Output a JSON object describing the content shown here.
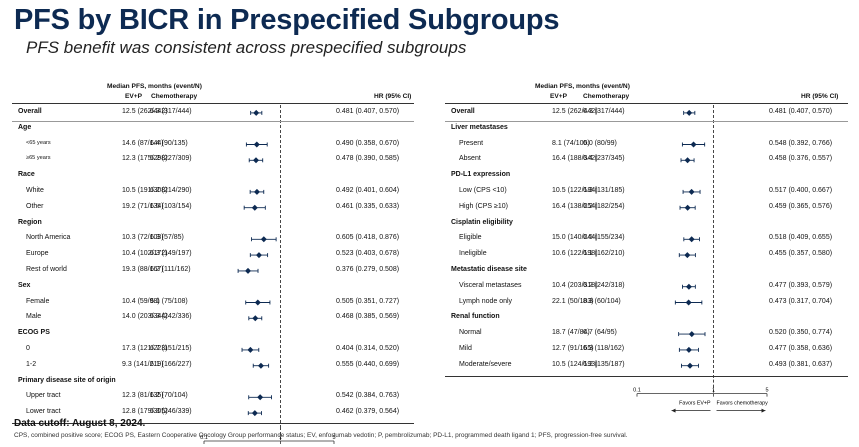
{
  "title": "PFS by BICR in Prespecified Subgroups",
  "subtitle": "PFS benefit was consistent across prespecified subgroups",
  "headers": {
    "median": "Median PFS, months (event/N)",
    "evp": "EV+P",
    "chemo": "Chemotherapy",
    "hr": "HR (95% CI)"
  },
  "axis": {
    "ticks": [
      "0.1",
      "1",
      "5"
    ],
    "favors_left": "Favors EV+P",
    "favors_right": "Favors chemotherapy"
  },
  "footer": {
    "cutoff": "Data cutoff: August 8, 2024.",
    "abbrev": "CPS, combined positive score; ECOG PS, Eastern Cooperative Oncology Group performance status; EV, enfortumab vedotin; P, pembrolizumab; PD-L1, programmed death ligand 1; PFS, progression-free survival."
  },
  "chart_data": [
    {
      "type": "forest",
      "x_scale": "log",
      "xlim": [
        0.1,
        5
      ],
      "reference_line": 1,
      "rows": [
        {
          "kind": "row",
          "label": "Overall",
          "bold": true,
          "evp": "12.5 (262/442)",
          "chemo": "6.3 (317/444)",
          "hr_text": "0.481 (0.407, 0.570)",
          "hr": 0.481,
          "lo": 0.407,
          "hi": 0.57
        },
        {
          "kind": "group",
          "label": "Age"
        },
        {
          "kind": "row",
          "label": "<65 years",
          "small": true,
          "evp": "14.6 (87/144)",
          "chemo": "6.4 (90/135)",
          "hr_text": "0.490 (0.358, 0.670)",
          "hr": 0.49,
          "lo": 0.358,
          "hi": 0.67
        },
        {
          "kind": "row",
          "label": "≥65 years",
          "small": true,
          "evp": "12.3 (175/298)",
          "chemo": "6.2 (227/309)",
          "hr_text": "0.478 (0.390, 0.585)",
          "hr": 0.478,
          "lo": 0.39,
          "hi": 0.585
        },
        {
          "kind": "group",
          "label": "Race"
        },
        {
          "kind": "row",
          "label": "White",
          "evp": "10.5 (191/308)",
          "chemo": "6.2 (214/290)",
          "hr_text": "0.492 (0.401, 0.604)",
          "hr": 0.492,
          "lo": 0.401,
          "hi": 0.604
        },
        {
          "kind": "row",
          "label": "Other",
          "evp": "19.2 (71/134)",
          "chemo": "6.5 (103/154)",
          "hr_text": "0.461 (0.335, 0.633)",
          "hr": 0.461,
          "lo": 0.335,
          "hi": 0.633
        },
        {
          "kind": "group",
          "label": "Region"
        },
        {
          "kind": "row",
          "label": "North America",
          "evp": "10.3 (72/103)",
          "chemo": "6.3 (57/85)",
          "hr_text": "0.605 (0.418, 0.876)",
          "hr": 0.605,
          "lo": 0.418,
          "hi": 0.876
        },
        {
          "kind": "row",
          "label": "Europe",
          "evp": "10.4 (102/172)",
          "chemo": "6.3 (149/197)",
          "hr_text": "0.523 (0.403, 0.678)",
          "hr": 0.523,
          "lo": 0.403,
          "hi": 0.678
        },
        {
          "kind": "row",
          "label": "Rest of world",
          "evp": "19.3 (88/167)",
          "chemo": "6.2 (111/162)",
          "hr_text": "0.376 (0.279, 0.508)",
          "hr": 0.376,
          "lo": 0.279,
          "hi": 0.508
        },
        {
          "kind": "group",
          "label": "Sex"
        },
        {
          "kind": "row",
          "label": "Female",
          "evp": "10.4 (59/98)",
          "chemo": "6.1 (75/108)",
          "hr_text": "0.505 (0.351, 0.727)",
          "hr": 0.505,
          "lo": 0.351,
          "hi": 0.727
        },
        {
          "kind": "row",
          "label": "Male",
          "evp": "14.0 (203/344)",
          "chemo": "6.3 (242/336)",
          "hr_text": "0.468 (0.385, 0.569)",
          "hr": 0.468,
          "lo": 0.385,
          "hi": 0.569
        },
        {
          "kind": "group",
          "label": "ECOG PS"
        },
        {
          "kind": "row",
          "label": "0",
          "evp": "17.3 (121/223)",
          "chemo": "6.7 (151/215)",
          "hr_text": "0.404 (0.314, 0.520)",
          "hr": 0.404,
          "lo": 0.314,
          "hi": 0.52
        },
        {
          "kind": "row",
          "label": "1-2",
          "evp": "9.3 (141/219)",
          "chemo": "6.1 (166/227)",
          "hr_text": "0.555 (0.440, 0.699)",
          "hr": 0.555,
          "lo": 0.44,
          "hi": 0.699
        },
        {
          "kind": "group",
          "label": "Primary disease site of origin"
        },
        {
          "kind": "row",
          "label": "Upper tract",
          "evp": "12.3 (81/135)",
          "chemo": "6.2 (70/104)",
          "hr_text": "0.542 (0.384, 0.763)",
          "hr": 0.542,
          "lo": 0.384,
          "hi": 0.763
        },
        {
          "kind": "row",
          "label": "Lower tract",
          "evp": "12.8 (179/305)",
          "chemo": "6.3 (246/339)",
          "hr_text": "0.462 (0.379, 0.564)",
          "hr": 0.462,
          "lo": 0.379,
          "hi": 0.564
        }
      ]
    },
    {
      "type": "forest",
      "x_scale": "log",
      "xlim": [
        0.1,
        5
      ],
      "reference_line": 1,
      "rows": [
        {
          "kind": "row",
          "label": "Overall",
          "bold": true,
          "evp": "12.5 (262/442)",
          "chemo": "6.3 (317/444)",
          "hr_text": "0.481 (0.407, 0.570)",
          "hr": 0.481,
          "lo": 0.407,
          "hi": 0.57
        },
        {
          "kind": "group",
          "label": "Liver metastases"
        },
        {
          "kind": "row",
          "label": "Present",
          "evp": "8.1 (74/100)",
          "chemo": "6.0 (80/99)",
          "hr_text": "0.548 (0.392, 0.766)",
          "hr": 0.548,
          "lo": 0.392,
          "hi": 0.766
        },
        {
          "kind": "row",
          "label": "Absent",
          "evp": "16.4 (188/342)",
          "chemo": "6.4 (237/345)",
          "hr_text": "0.458 (0.376, 0.557)",
          "hr": 0.458,
          "lo": 0.376,
          "hi": 0.557
        },
        {
          "kind": "group",
          "label": "PD-L1 expression"
        },
        {
          "kind": "row",
          "label": "Low (CPS <10)",
          "evp": "10.5 (122/184)",
          "chemo": "6.3 (131/185)",
          "hr_text": "0.517 (0.400, 0.667)",
          "hr": 0.517,
          "lo": 0.4,
          "hi": 0.667
        },
        {
          "kind": "row",
          "label": "High (CPS ≥10)",
          "evp": "16.4 (138/254)",
          "chemo": "6.2 (182/254)",
          "hr_text": "0.459 (0.365, 0.576)",
          "hr": 0.459,
          "lo": 0.365,
          "hi": 0.576
        },
        {
          "kind": "group",
          "label": "Cisplatin eligibility"
        },
        {
          "kind": "row",
          "label": "Eligible",
          "evp": "15.0 (140/244)",
          "chemo": "6.5 (155/234)",
          "hr_text": "0.518 (0.409, 0.655)",
          "hr": 0.518,
          "lo": 0.409,
          "hi": 0.655
        },
        {
          "kind": "row",
          "label": "Ineligible",
          "evp": "10.6 (122/198)",
          "chemo": "6.1 (162/210)",
          "hr_text": "0.455 (0.357, 0.580)",
          "hr": 0.455,
          "lo": 0.357,
          "hi": 0.58
        },
        {
          "kind": "group",
          "label": "Metastatic disease site"
        },
        {
          "kind": "row",
          "label": "Visceral metastases",
          "evp": "10.4 (203/318)",
          "chemo": "6.2 (242/318)",
          "hr_text": "0.477 (0.393, 0.579)",
          "hr": 0.477,
          "lo": 0.393,
          "hi": 0.579
        },
        {
          "kind": "row",
          "label": "Lymph node only",
          "evp": "22.1 (50/103)",
          "chemo": "8.3 (60/104)",
          "hr_text": "0.473 (0.317, 0.704)",
          "hr": 0.473,
          "lo": 0.317,
          "hi": 0.704
        },
        {
          "kind": "group",
          "label": "Renal function"
        },
        {
          "kind": "row",
          "label": "Normal",
          "evp": "18.7 (47/84)",
          "chemo": "6.7 (64/95)",
          "hr_text": "0.520 (0.350, 0.774)",
          "hr": 0.52,
          "lo": 0.35,
          "hi": 0.774
        },
        {
          "kind": "row",
          "label": "Mild",
          "evp": "12.7 (91/165)",
          "chemo": "6.3 (118/162)",
          "hr_text": "0.477 (0.358, 0.636)",
          "hr": 0.477,
          "lo": 0.358,
          "hi": 0.636
        },
        {
          "kind": "row",
          "label": "Moderate/severe",
          "evp": "10.5 (124/193)",
          "chemo": "6.2 (135/187)",
          "hr_text": "0.493 (0.381, 0.637)",
          "hr": 0.493,
          "lo": 0.381,
          "hi": 0.637
        }
      ]
    }
  ]
}
